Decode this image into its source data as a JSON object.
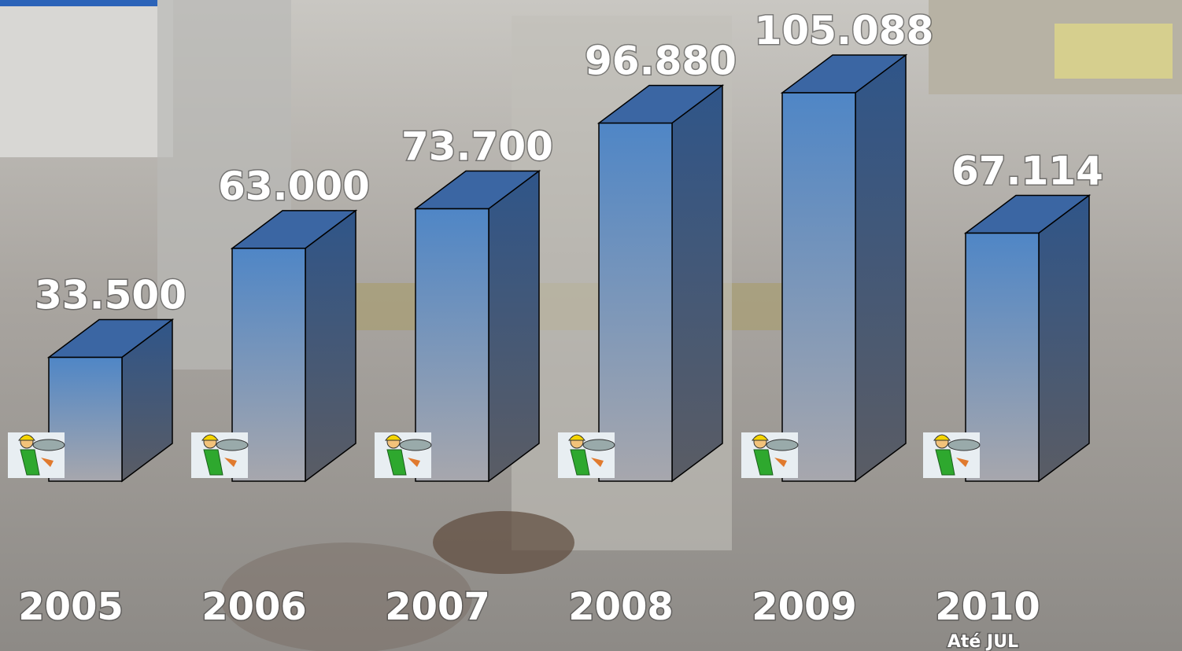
{
  "chart_data": {
    "type": "bar3d",
    "categories": [
      "2005",
      "2006",
      "2007",
      "2008",
      "2009",
      "2010"
    ],
    "values": [
      33500,
      63000,
      73700,
      96880,
      105088,
      67114
    ],
    "value_labels": [
      "33.500",
      "63.000",
      "73.700",
      "96.880",
      "105.088",
      "67.114"
    ],
    "annotation": "Até JUL",
    "color": "#4f86c6"
  }
}
